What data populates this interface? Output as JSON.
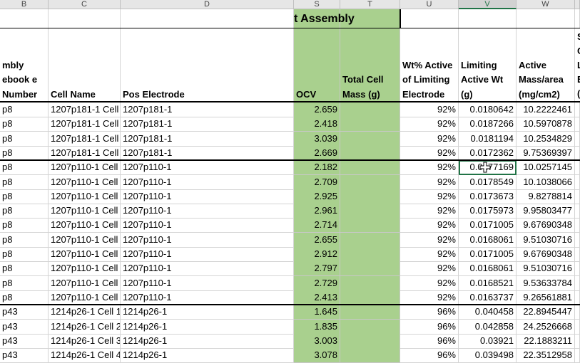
{
  "columns": [
    "B",
    "C",
    "D",
    "S",
    "T",
    "U",
    "V",
    "W"
  ],
  "selected_column": "V",
  "group_title": "t Assembly",
  "headers": {
    "b": "mbly ebook e Number",
    "c": "Cell Name",
    "d": "Pos Electrode",
    "s": "OCV",
    "t": "Total Cell Mass (g)",
    "u": "Wt% Active of Limiting Electrode",
    "v": "Limiting Active Wt (g)",
    "w": "Active Mass/area (mg/cm2)",
    "x": "S C L E ("
  },
  "rows": [
    {
      "b": "p8",
      "c": "1207p181-1 Cell",
      "d": "1207p181-1",
      "ocv": "2.659",
      "pct": "92%",
      "wt": "0.0180642",
      "mass": "10.2222461"
    },
    {
      "b": "p8",
      "c": "1207p181-1 Cell",
      "d": "1207p181-1",
      "ocv": "2.418",
      "pct": "92%",
      "wt": "0.0187266",
      "mass": "10.5970878"
    },
    {
      "b": "p8",
      "c": "1207p181-1 Cell",
      "d": "1207p181-1",
      "ocv": "3.039",
      "pct": "92%",
      "wt": "0.0181194",
      "mass": "10.2534829"
    },
    {
      "b": "p8",
      "c": "1207p181-1 Cell",
      "d": "1207p181-1",
      "ocv": "2.669",
      "pct": "92%",
      "wt": "0.0172362",
      "mass": "9.75369397"
    },
    {
      "b": "p8",
      "c": "1207p110-1 Cell",
      "d": "1207p110-1",
      "ocv": "2.182",
      "pct": "92%",
      "wt": "0.0177169",
      "mass": "10.0257145"
    },
    {
      "b": "p8",
      "c": "1207p110-1 Cell",
      "d": "1207p110-1",
      "ocv": "2.709",
      "pct": "92%",
      "wt": "0.0178549",
      "mass": "10.1038066"
    },
    {
      "b": "p8",
      "c": "1207p110-1 Cell",
      "d": "1207p110-1",
      "ocv": "2.925",
      "pct": "92%",
      "wt": "0.0173673",
      "mass": "9.8278814"
    },
    {
      "b": "p8",
      "c": "1207p110-1 Cell",
      "d": "1207p110-1",
      "ocv": "2.961",
      "pct": "92%",
      "wt": "0.0175973",
      "mass": "9.95803477"
    },
    {
      "b": "p8",
      "c": "1207p110-1 Cell",
      "d": "1207p110-1",
      "ocv": "2.714",
      "pct": "92%",
      "wt": "0.0171005",
      "mass": "9.67690348"
    },
    {
      "b": "p8",
      "c": "1207p110-1 Cell",
      "d": "1207p110-1",
      "ocv": "2.655",
      "pct": "92%",
      "wt": "0.0168061",
      "mass": "9.51030716"
    },
    {
      "b": "p8",
      "c": "1207p110-1 Cell",
      "d": "1207p110-1",
      "ocv": "2.912",
      "pct": "92%",
      "wt": "0.0171005",
      "mass": "9.67690348"
    },
    {
      "b": "p8",
      "c": "1207p110-1 Cell",
      "d": "1207p110-1",
      "ocv": "2.797",
      "pct": "92%",
      "wt": "0.0168061",
      "mass": "9.51030716"
    },
    {
      "b": "p8",
      "c": "1207p110-1 Cell",
      "d": "1207p110-1",
      "ocv": "2.729",
      "pct": "92%",
      "wt": "0.0168521",
      "mass": "9.53633784"
    },
    {
      "b": "p8",
      "c": "1207p110-1 Cell",
      "d": "1207p110-1",
      "ocv": "2.413",
      "pct": "92%",
      "wt": "0.0163737",
      "mass": "9.26561881"
    },
    {
      "b": "p43",
      "c": "1214p26-1 Cell 1",
      "d": "1214p26-1",
      "ocv": "1.645",
      "pct": "96%",
      "wt": "0.040458",
      "mass": "22.8945447"
    },
    {
      "b": "p43",
      "c": "1214p26-1 Cell 2",
      "d": "1214p26-1",
      "ocv": "1.835",
      "pct": "96%",
      "wt": "0.042858",
      "mass": "24.2526668"
    },
    {
      "b": "p43",
      "c": "1214p26-1 Cell 3",
      "d": "1214p26-1",
      "ocv": "3.003",
      "pct": "96%",
      "wt": "0.03921",
      "mass": "22.1883211"
    },
    {
      "b": "p43",
      "c": "1214p26-1 Cell 4",
      "d": "1214p26-1",
      "ocv": "3.078",
      "pct": "96%",
      "wt": "0.039498",
      "mass": "22.3512958"
    }
  ],
  "selected_cell": {
    "row": 4,
    "column": "V"
  },
  "colors": {
    "green_fill": "#a9d08e",
    "selection": "#217346"
  }
}
